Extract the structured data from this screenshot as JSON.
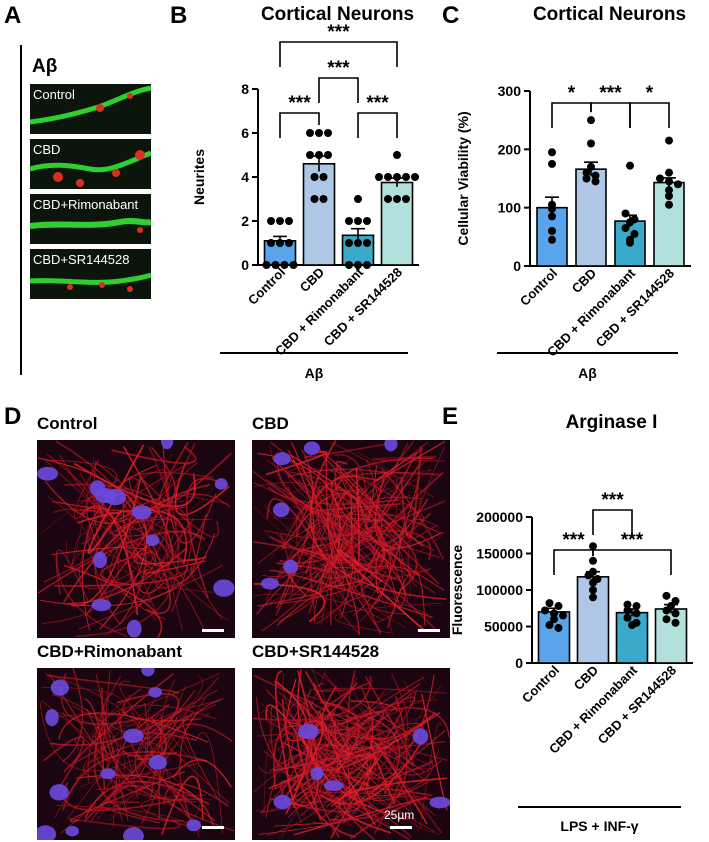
{
  "panel_letters": {
    "a": "A",
    "b": "B",
    "c": "C",
    "d": "D",
    "e": "E"
  },
  "panel_a": {
    "title": "Aβ",
    "thumbs": [
      "Control",
      "CBD",
      "CBD+Rimonabant",
      "CBD+SR144528"
    ]
  },
  "panel_d": {
    "images": [
      "Control",
      "CBD",
      "CBD+Rimonabant",
      "CBD+SR144528"
    ],
    "scale_label": "25µm"
  },
  "colors": {
    "control": "#5aa4ec",
    "cbd": "#afc7e6",
    "rimonabant": "#3ba9c9",
    "sr144528": "#b2e0dc"
  },
  "chart_data": [
    {
      "id": "B",
      "type": "bar",
      "title": "Cortical Neurons",
      "ylabel": "Neurites",
      "ylim": [
        0,
        8
      ],
      "yticks": [
        "0",
        "2",
        "4",
        "6",
        "8"
      ],
      "categories": [
        "Control",
        "CBD",
        "CBD + Rimonabant",
        "CBD + SR144528"
      ],
      "values": [
        1.1,
        4.6,
        1.35,
        3.75
      ],
      "sem": [
        0.2,
        0.35,
        0.3,
        0.2
      ],
      "points": [
        [
          0,
          0,
          0,
          0,
          1,
          1,
          1,
          2,
          2,
          2
        ],
        [
          3,
          3,
          4,
          4,
          5,
          5,
          5,
          6,
          6,
          6
        ],
        [
          0,
          0,
          0,
          1,
          1,
          1,
          2,
          2,
          2,
          3
        ],
        [
          3,
          3,
          3,
          4,
          4,
          4,
          4,
          4,
          5
        ]
      ],
      "group_label": "Aβ",
      "significance": [
        {
          "from": 0,
          "to": 1,
          "label": "***"
        },
        {
          "from": 2,
          "to": 3,
          "label": "***"
        },
        {
          "from": 1,
          "to": 2,
          "label": "***"
        },
        {
          "from": 0,
          "to": 3,
          "label": "***"
        }
      ]
    },
    {
      "id": "C",
      "type": "bar",
      "title": "Cortical Neurons",
      "ylabel": "Cellular Viability (%)",
      "ylim": [
        0,
        300
      ],
      "yticks": [
        "0",
        "100",
        "200",
        "300"
      ],
      "categories": [
        "Control",
        "CBD",
        "CBD + Rimonabant",
        "CBD + SR144528"
      ],
      "values": [
        100,
        166,
        77,
        143
      ],
      "sem": [
        18,
        12,
        10,
        8
      ],
      "points": [
        [
          195,
          175,
          105,
          98,
          85,
          60,
          45
        ],
        [
          250,
          210,
          170,
          160,
          155,
          150,
          145
        ],
        [
          172,
          90,
          80,
          75,
          65,
          55,
          45,
          40
        ],
        [
          215,
          160,
          150,
          145,
          140,
          130,
          120,
          105
        ]
      ],
      "group_label": "Aβ",
      "significance": [
        {
          "from": 0,
          "to": 1,
          "label": "*"
        },
        {
          "from": 1,
          "to": 2,
          "label": "***"
        },
        {
          "from": 2,
          "to": 3,
          "label": "*"
        }
      ]
    },
    {
      "id": "E",
      "type": "bar",
      "title": "Arginase I",
      "ylabel": "Fluorescence",
      "ylim": [
        0,
        200000
      ],
      "yticks": [
        "0",
        "50000",
        "100000",
        "150000",
        "200000"
      ],
      "categories": [
        "Control",
        "CBD",
        "CBD + Rimonabant",
        "CBD + SR144528"
      ],
      "values": [
        70000,
        118000,
        69000,
        74000
      ],
      "sem": [
        5000,
        7000,
        5000,
        6000
      ],
      "points": [
        [
          82000,
          78000,
          72000,
          68000,
          65000,
          60000,
          52000,
          48000
        ],
        [
          160000,
          140000,
          125000,
          120000,
          115000,
          110000,
          100000,
          90000
        ],
        [
          80000,
          78000,
          72000,
          68000,
          62000,
          55000,
          52000
        ],
        [
          92000,
          85000,
          78000,
          72000,
          68000,
          60000,
          55000
        ]
      ],
      "group_label": "LPS + INF-γ",
      "significance": [
        {
          "from": 0,
          "to": 1,
          "label": "***"
        },
        {
          "from": 1,
          "to": 3,
          "label": "***"
        },
        {
          "from": 1,
          "to": 2,
          "label": "***"
        }
      ]
    }
  ]
}
